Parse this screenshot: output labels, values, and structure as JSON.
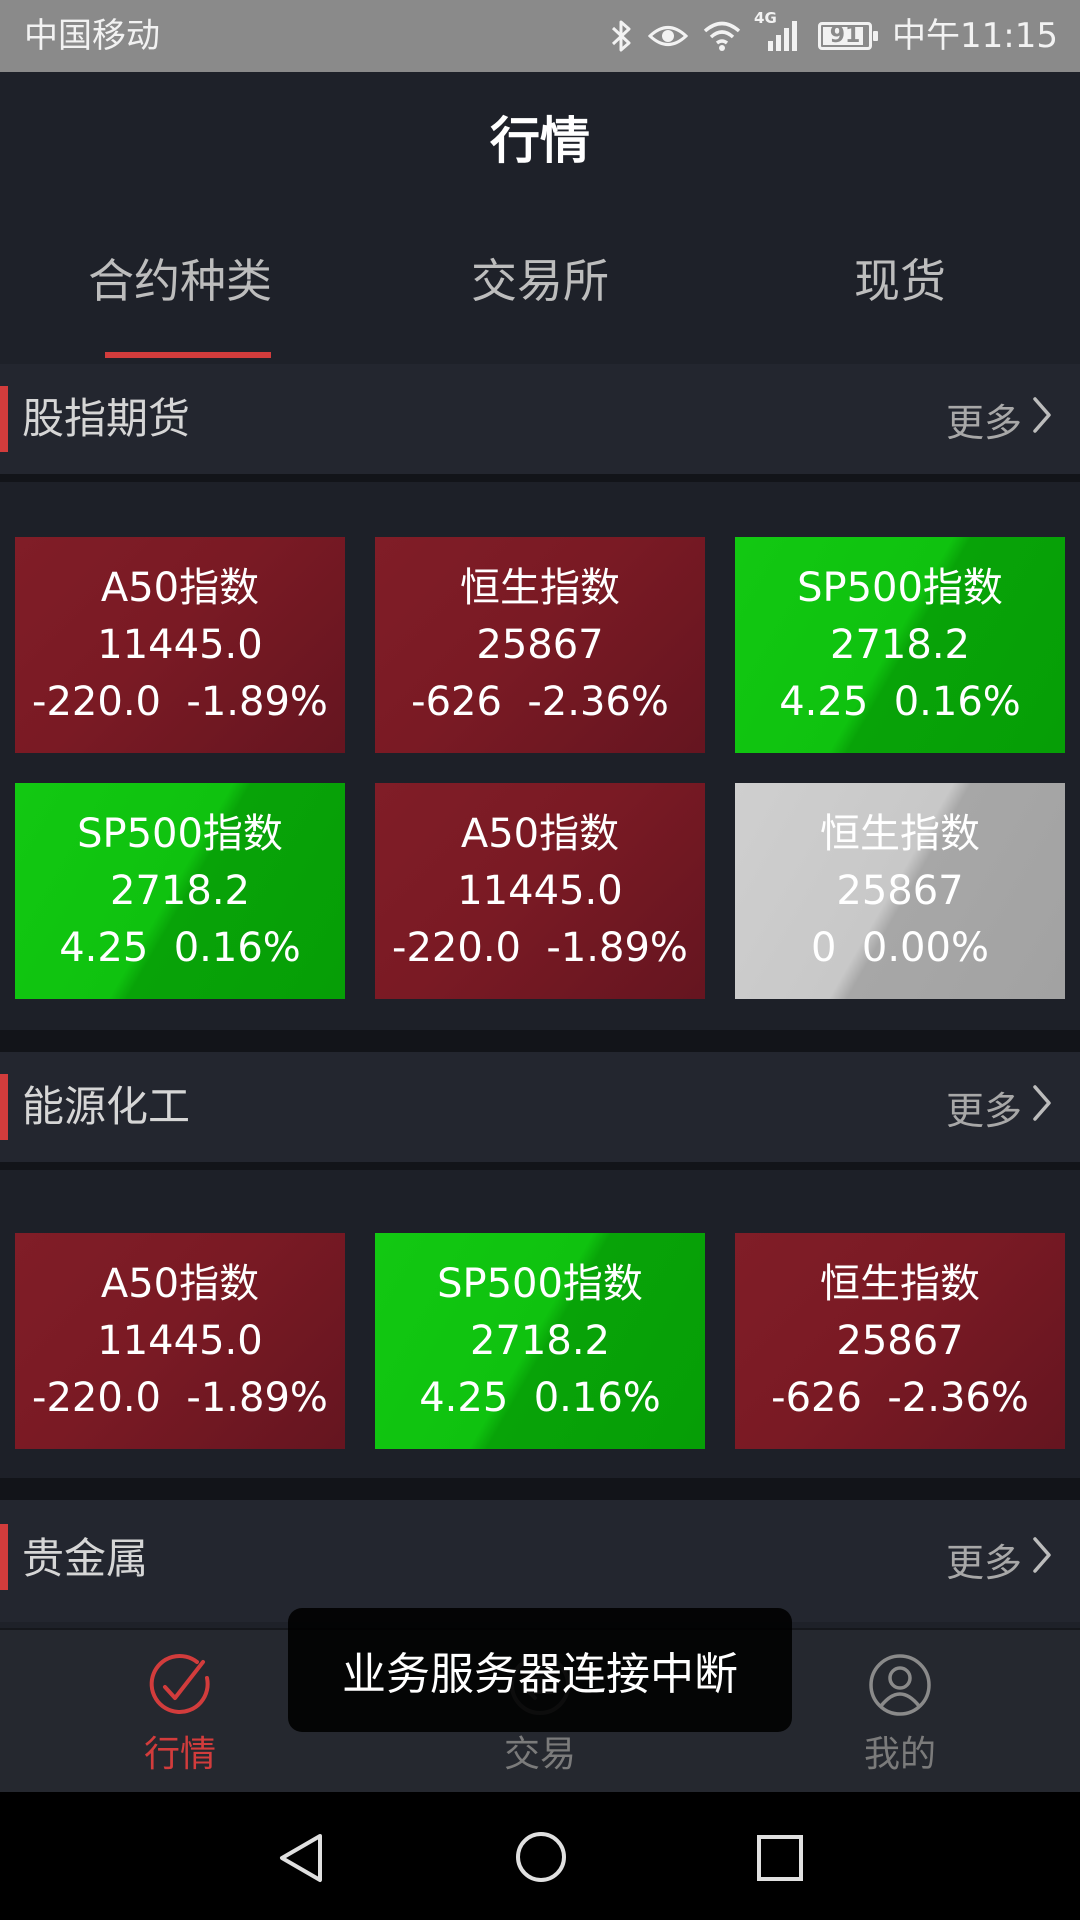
{
  "status_bar": {
    "carrier": "中国移动",
    "network": "4G",
    "battery": 91,
    "time": "中午11:15"
  },
  "header": {
    "title": "行情"
  },
  "tabs": [
    {
      "label": "合约种类",
      "active": true
    },
    {
      "label": "交易所",
      "active": false
    },
    {
      "label": "现货",
      "active": false
    }
  ],
  "more_label": "更多",
  "sections": [
    {
      "title": "股指期货",
      "cards": [
        {
          "name": "A50指数",
          "price": "11445.0",
          "change": "-220.0  -1.89%",
          "color": "red"
        },
        {
          "name": "恒生指数",
          "price": "25867",
          "change": "-626  -2.36%",
          "color": "red"
        },
        {
          "name": "SP500指数",
          "price": "2718.2",
          "change": "4.25  0.16%",
          "color": "green"
        },
        {
          "name": "SP500指数",
          "price": "2718.2",
          "change": "4.25  0.16%",
          "color": "green"
        },
        {
          "name": "A50指数",
          "price": "11445.0",
          "change": "-220.0  -1.89%",
          "color": "red"
        },
        {
          "name": "恒生指数",
          "price": "25867",
          "change": "0  0.00%",
          "color": "gray"
        }
      ]
    },
    {
      "title": "能源化工",
      "cards": [
        {
          "name": "A50指数",
          "price": "11445.0",
          "change": "-220.0  -1.89%",
          "color": "red"
        },
        {
          "name": "SP500指数",
          "price": "2718.2",
          "change": "4.25  0.16%",
          "color": "green"
        },
        {
          "name": "恒生指数",
          "price": "25867",
          "change": "-626  -2.36%",
          "color": "red"
        }
      ]
    },
    {
      "title": "贵金属",
      "cards": []
    }
  ],
  "bottom_nav": [
    {
      "label": "行情",
      "icon": "market-icon",
      "active": true
    },
    {
      "label": "交易",
      "icon": "trade-icon",
      "active": false
    },
    {
      "label": "我的",
      "icon": "profile-icon",
      "active": false
    }
  ],
  "toast": "业务服务器连接中断",
  "colors": {
    "accent": "#d23c3c",
    "up": "#7a1a24",
    "down": "#0fc20f",
    "flat": "#c8c8c8"
  }
}
